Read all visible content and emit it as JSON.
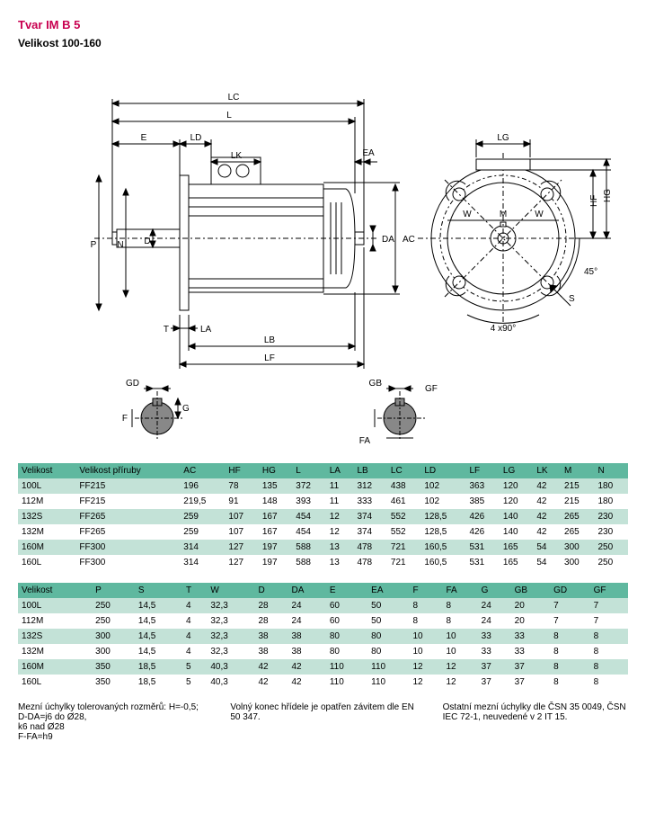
{
  "title": "Tvar IM B 5",
  "subtitle": "Velikost 100-160",
  "diagram_labels": [
    "LC",
    "L",
    "E",
    "LD",
    "LK",
    "EA",
    "P",
    "N",
    "D",
    "DA",
    "AC",
    "T",
    "LA",
    "LB",
    "LF",
    "GD",
    "G",
    "F",
    "GB",
    "GF",
    "FA",
    "LG",
    "W",
    "M",
    "W",
    "HF",
    "HG",
    "S",
    "4 x90°",
    "45°"
  ],
  "table1": {
    "columns": [
      "Velikost",
      "Velikost příruby",
      "AC",
      "HF",
      "HG",
      "L",
      "LA",
      "LB",
      "LC",
      "LD",
      "LF",
      "LG",
      "LK",
      "M",
      "N"
    ],
    "rows": [
      [
        "100L",
        "FF215",
        "196",
        "78",
        "135",
        "372",
        "11",
        "312",
        "438",
        "102",
        "363",
        "120",
        "42",
        "215",
        "180"
      ],
      [
        "112M",
        "FF215",
        "219,5",
        "91",
        "148",
        "393",
        "11",
        "333",
        "461",
        "102",
        "385",
        "120",
        "42",
        "215",
        "180"
      ],
      [
        "132S",
        "FF265",
        "259",
        "107",
        "167",
        "454",
        "12",
        "374",
        "552",
        "128,5",
        "426",
        "140",
        "42",
        "265",
        "230"
      ],
      [
        "132M",
        "FF265",
        "259",
        "107",
        "167",
        "454",
        "12",
        "374",
        "552",
        "128,5",
        "426",
        "140",
        "42",
        "265",
        "230"
      ],
      [
        "160M",
        "FF300",
        "314",
        "127",
        "197",
        "588",
        "13",
        "478",
        "721",
        "160,5",
        "531",
        "165",
        "54",
        "300",
        "250"
      ],
      [
        "160L",
        "FF300",
        "314",
        "127",
        "197",
        "588",
        "13",
        "478",
        "721",
        "160,5",
        "531",
        "165",
        "54",
        "300",
        "250"
      ]
    ]
  },
  "table2": {
    "columns": [
      "Velikost",
      "P",
      "S",
      "T",
      "W",
      "D",
      "DA",
      "E",
      "EA",
      "F",
      "FA",
      "G",
      "GB",
      "GD",
      "GF"
    ],
    "rows": [
      [
        "100L",
        "250",
        "14,5",
        "4",
        "32,3",
        "28",
        "24",
        "60",
        "50",
        "8",
        "8",
        "24",
        "20",
        "7",
        "7"
      ],
      [
        "112M",
        "250",
        "14,5",
        "4",
        "32,3",
        "28",
        "24",
        "60",
        "50",
        "8",
        "8",
        "24",
        "20",
        "7",
        "7"
      ],
      [
        "132S",
        "300",
        "14,5",
        "4",
        "32,3",
        "38",
        "38",
        "80",
        "80",
        "10",
        "10",
        "33",
        "33",
        "8",
        "8"
      ],
      [
        "132M",
        "300",
        "14,5",
        "4",
        "32,3",
        "38",
        "38",
        "80",
        "80",
        "10",
        "10",
        "33",
        "33",
        "8",
        "8"
      ],
      [
        "160M",
        "350",
        "18,5",
        "5",
        "40,3",
        "42",
        "42",
        "110",
        "110",
        "12",
        "12",
        "37",
        "37",
        "8",
        "8"
      ],
      [
        "160L",
        "350",
        "18,5",
        "5",
        "40,3",
        "42",
        "42",
        "110",
        "110",
        "12",
        "12",
        "37",
        "37",
        "8",
        "8"
      ]
    ]
  },
  "notes": {
    "col1": "Mezní úchylky tolerovaných rozměrů: H=-0,5;\nD-DA=j6 do Ø28,\n        k6 nad Ø28\nF-FA=h9",
    "col2": "Volný konec hřídele je opatřen závitem dle EN 50 347.",
    "col3": "Ostatní mezní úchylky dle ČSN 35 0049, ČSN IEC 72-1, neuvedené v 2 IT 15."
  },
  "colors": {
    "header_bg": "#5fb89f",
    "row_even_bg": "#c3e2d7",
    "row_odd_bg": "#ffffff",
    "title_color": "#c80050"
  }
}
